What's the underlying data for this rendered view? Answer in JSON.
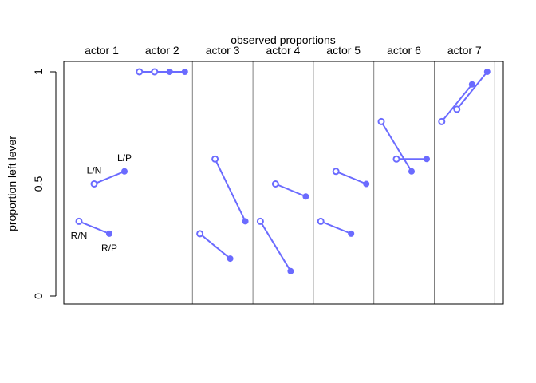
{
  "chart_data": {
    "type": "line",
    "title": "observed proportions",
    "xlabel": "",
    "ylabel": "proportion left lever",
    "ylim": [
      0,
      1
    ],
    "yticks": [
      "0",
      "0.5",
      "1"
    ],
    "reference_line": {
      "y": 0.5,
      "style": "dashed"
    },
    "colors": {
      "series": "#6b6bff",
      "axis": "#000000",
      "divider": "#808080"
    },
    "markers": {
      "no_partner": "open-circle",
      "partner": "filled-circle"
    },
    "condition_labels": [
      "R/N",
      "L/N",
      "R/P",
      "L/P"
    ],
    "panels": [
      {
        "actor": "actor 1",
        "values": [
          0.333,
          0.5,
          0.278,
          0.556
        ]
      },
      {
        "actor": "actor 2",
        "values": [
          1.0,
          1.0,
          1.0,
          1.0
        ]
      },
      {
        "actor": "actor 3",
        "values": [
          0.278,
          0.611,
          0.167,
          0.333
        ]
      },
      {
        "actor": "actor 4",
        "values": [
          0.333,
          0.5,
          0.111,
          0.444
        ]
      },
      {
        "actor": "actor 5",
        "values": [
          0.333,
          0.556,
          0.278,
          0.5
        ]
      },
      {
        "actor": "actor 6",
        "values": [
          0.778,
          0.611,
          0.556,
          0.611
        ]
      },
      {
        "actor": "actor 7",
        "values": [
          0.778,
          0.833,
          0.944,
          1.0
        ]
      }
    ]
  }
}
